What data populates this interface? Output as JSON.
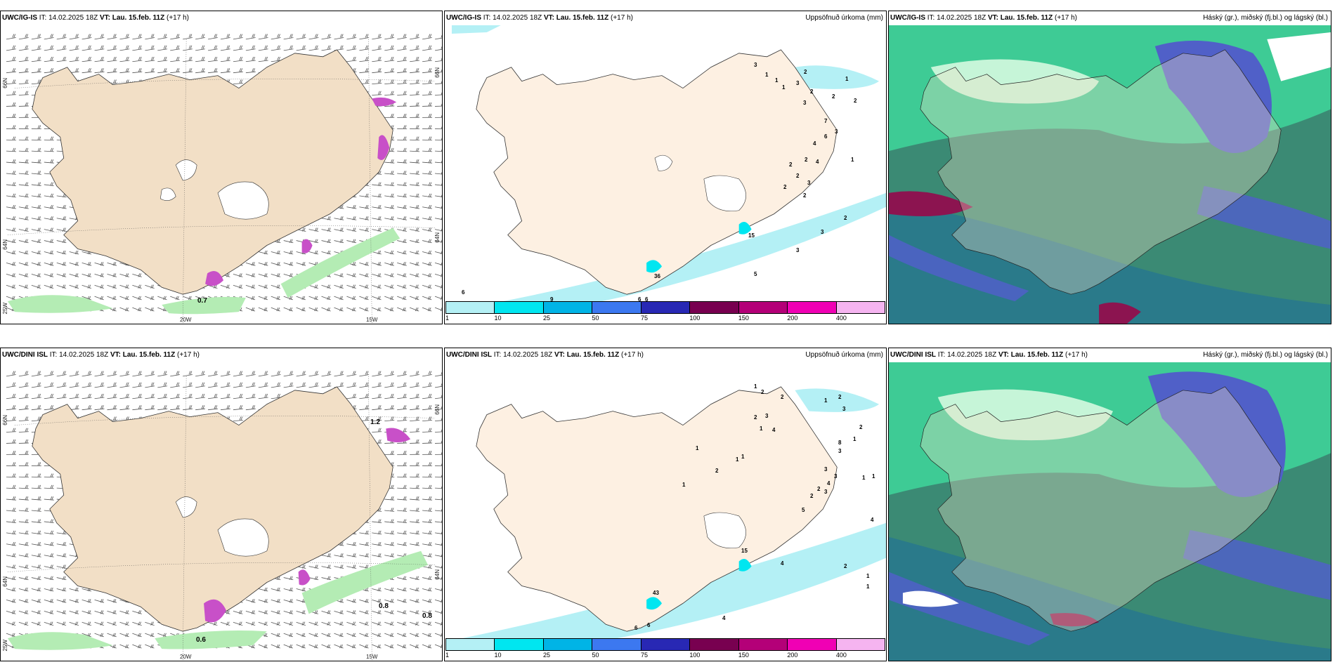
{
  "panels": {
    "top_left": {
      "model": "UWC/IG-IS",
      "it_label": "IT: 14.02.2025 18Z",
      "vt_label": "VT: Lau. 15.feb. 11Z",
      "lead": "(+17 h)",
      "right": "",
      "grid": {
        "lat_left": [
          "66N",
          "64N",
          "25W"
        ],
        "lat_right": [
          "66N",
          "64N"
        ],
        "lon": [
          "20W",
          "15W"
        ]
      },
      "values": [
        "0.7"
      ]
    },
    "top_mid": {
      "model": "UWC/IG-IS",
      "it_label": "IT: 14.02.2025 18Z",
      "vt_label": "VT: Lau. 15.feb. 11Z",
      "lead": "(+17 h)",
      "right": "Uppsöfnuð úrkoma (mm)",
      "values": [
        "3",
        "1",
        "1",
        "1",
        "2",
        "3",
        "2",
        "2",
        "2",
        "1",
        "3",
        "7",
        "3",
        "6",
        "4",
        "2",
        "1",
        "2",
        "2",
        "3",
        "4",
        "2",
        "2",
        "2",
        "15",
        "3",
        "3",
        "5",
        "36",
        "6",
        "9",
        "6",
        "6"
      ]
    },
    "top_right": {
      "model": "UWC/IG-IS",
      "it_label": "IT: 14.02.2025 18Z",
      "vt_label": "VT: Lau. 15.feb. 11Z",
      "lead": "(+17 h)",
      "right": "Háský (gr.), miðský (fj.bl.) og lágský (bl.)"
    },
    "bot_left": {
      "model": "UWC/DINI ISL",
      "it_label": "IT: 14.02.2025 18Z",
      "vt_label": "VT: Lau. 15.feb. 11Z",
      "lead": "(+17 h)",
      "right": "",
      "grid": {
        "lat_left": [
          "66N",
          "64N",
          "25W"
        ],
        "lat_right": [
          "66N",
          "64N"
        ],
        "lon": [
          "20W",
          "15W"
        ]
      },
      "values": [
        "1.2",
        "0.8",
        "0.8",
        "0.6"
      ]
    },
    "bot_mid": {
      "model": "UWC/DINI ISL",
      "it_label": "IT: 14.02.2025 18Z",
      "vt_label": "VT: Lau. 15.feb. 11Z",
      "lead": "(+17 h)",
      "right": "Uppsöfnuð úrkoma (mm)",
      "values": [
        "1",
        "2",
        "2",
        "1",
        "3",
        "2",
        "2",
        "3",
        "1",
        "4",
        "2",
        "8",
        "1",
        "3",
        "1",
        "1",
        "1",
        "2",
        "3",
        "3",
        "4",
        "2",
        "2",
        "3",
        "1",
        "1",
        "1",
        "5",
        "4",
        "15",
        "43",
        "4",
        "2",
        "1",
        "1",
        "4",
        "6",
        "6"
      ]
    },
    "bot_right": {
      "model": "UWC/DINI ISL",
      "it_label": "IT: 14.02.2025 18Z",
      "vt_label": "VT: Lau. 15.feb. 11Z",
      "lead": "(+17 h)",
      "right": "Háský (gr.), miðský (fj.bl.) og lágský (bl.)"
    }
  },
  "legend": {
    "ticks": [
      "1",
      "10",
      "25",
      "50",
      "75",
      "100",
      "150",
      "200",
      "400"
    ],
    "colors": [
      "#b4f0f5",
      "#00e6f0",
      "#00b4e6",
      "#3c78f0",
      "#2828b4",
      "#780050",
      "#b40078",
      "#f000b4",
      "#f5b4f0"
    ]
  },
  "colors": {
    "land": "#f2dfc6",
    "land_precip": "#fdf0e2",
    "precip_light": "#b4f0f5",
    "precip_mid": "#00e6f0",
    "wind_green": "#b4ecb4",
    "magenta": "#c850c8",
    "cloud_high": "#40e0a0",
    "cloud_mid": "#5060c8",
    "cloud_low": "#2a7a8a",
    "cloud_dark": "#3b8a74",
    "cloud_red": "#8c1450"
  }
}
